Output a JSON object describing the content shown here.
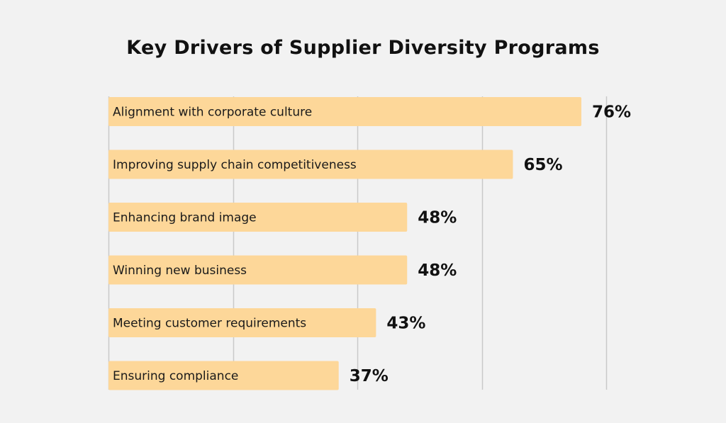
{
  "chart_data": {
    "type": "bar",
    "orientation": "horizontal",
    "title": "Key Drivers of Supplier Diversity Programs",
    "categories": [
      "Alignment with corporate culture",
      "Improving supply chain competitiveness",
      "Enhancing brand image",
      "Winning new business",
      "Meeting customer requirements",
      "Ensuring compliance"
    ],
    "values": [
      76,
      65,
      48,
      48,
      43,
      37
    ],
    "value_labels": [
      "76%",
      "65%",
      "48%",
      "48%",
      "43%",
      "37%"
    ],
    "unit": "%",
    "xlim": [
      0,
      80
    ],
    "grid": true,
    "xlabel": "",
    "ylabel": "",
    "colors": {
      "bar": "#fdd799",
      "grid": "#c9c9c9",
      "background": "#f2f2f2",
      "text": "#111111"
    }
  }
}
